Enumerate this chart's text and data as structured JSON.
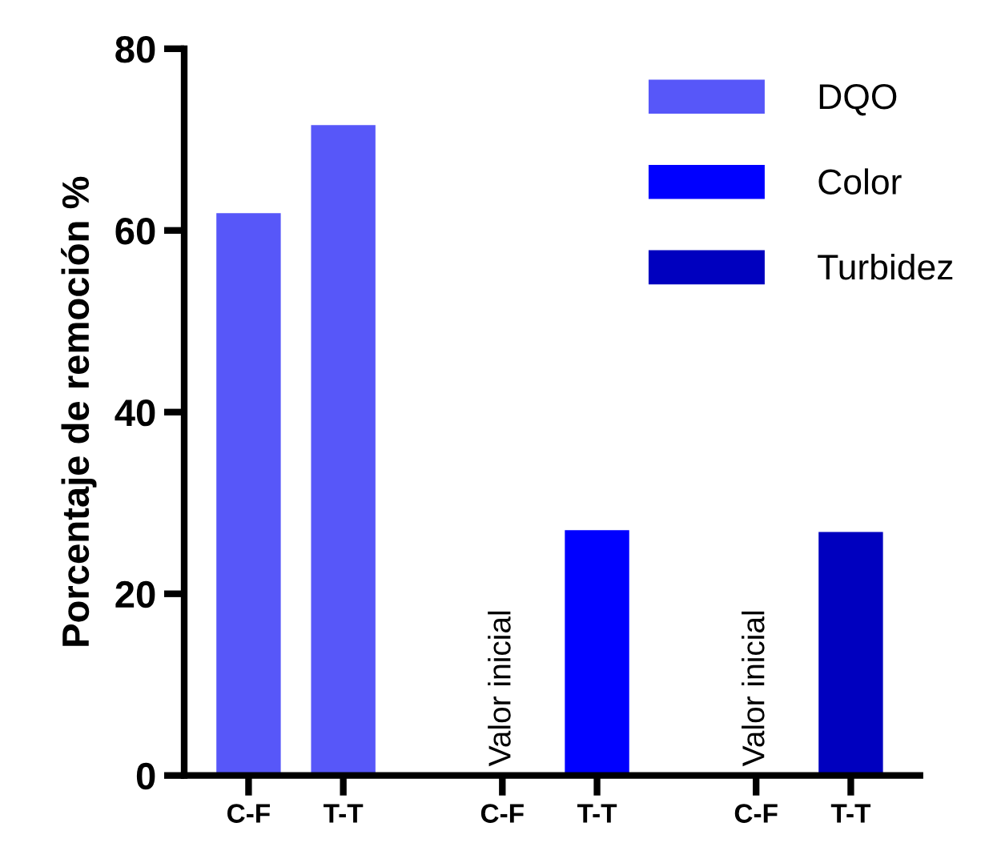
{
  "chart_data": {
    "type": "bar",
    "ylabel": "Porcentaje de remoción %",
    "categories": [
      "C-F",
      "T-T",
      "C-F",
      "T-T",
      "C-F",
      "T-T"
    ],
    "series": [
      {
        "name": "DQO",
        "color": "#5757f9",
        "values": [
          61.9,
          71.6,
          null,
          null,
          null,
          null
        ]
      },
      {
        "name": "Color",
        "color": "#0000ff",
        "values": [
          null,
          null,
          0,
          27.0,
          null,
          null
        ],
        "value_labels": [
          null,
          null,
          "Valor inicial",
          null,
          null,
          null
        ]
      },
      {
        "name": "Turbidez",
        "color": "#0000bf",
        "values": [
          null,
          null,
          null,
          null,
          0,
          26.8
        ],
        "value_labels": [
          null,
          null,
          null,
          null,
          "Valor inicial",
          null
        ]
      }
    ],
    "ylim": [
      0,
      80
    ],
    "yticks": [
      0,
      20,
      40,
      60,
      80
    ],
    "grid": false,
    "legend": "top right"
  }
}
